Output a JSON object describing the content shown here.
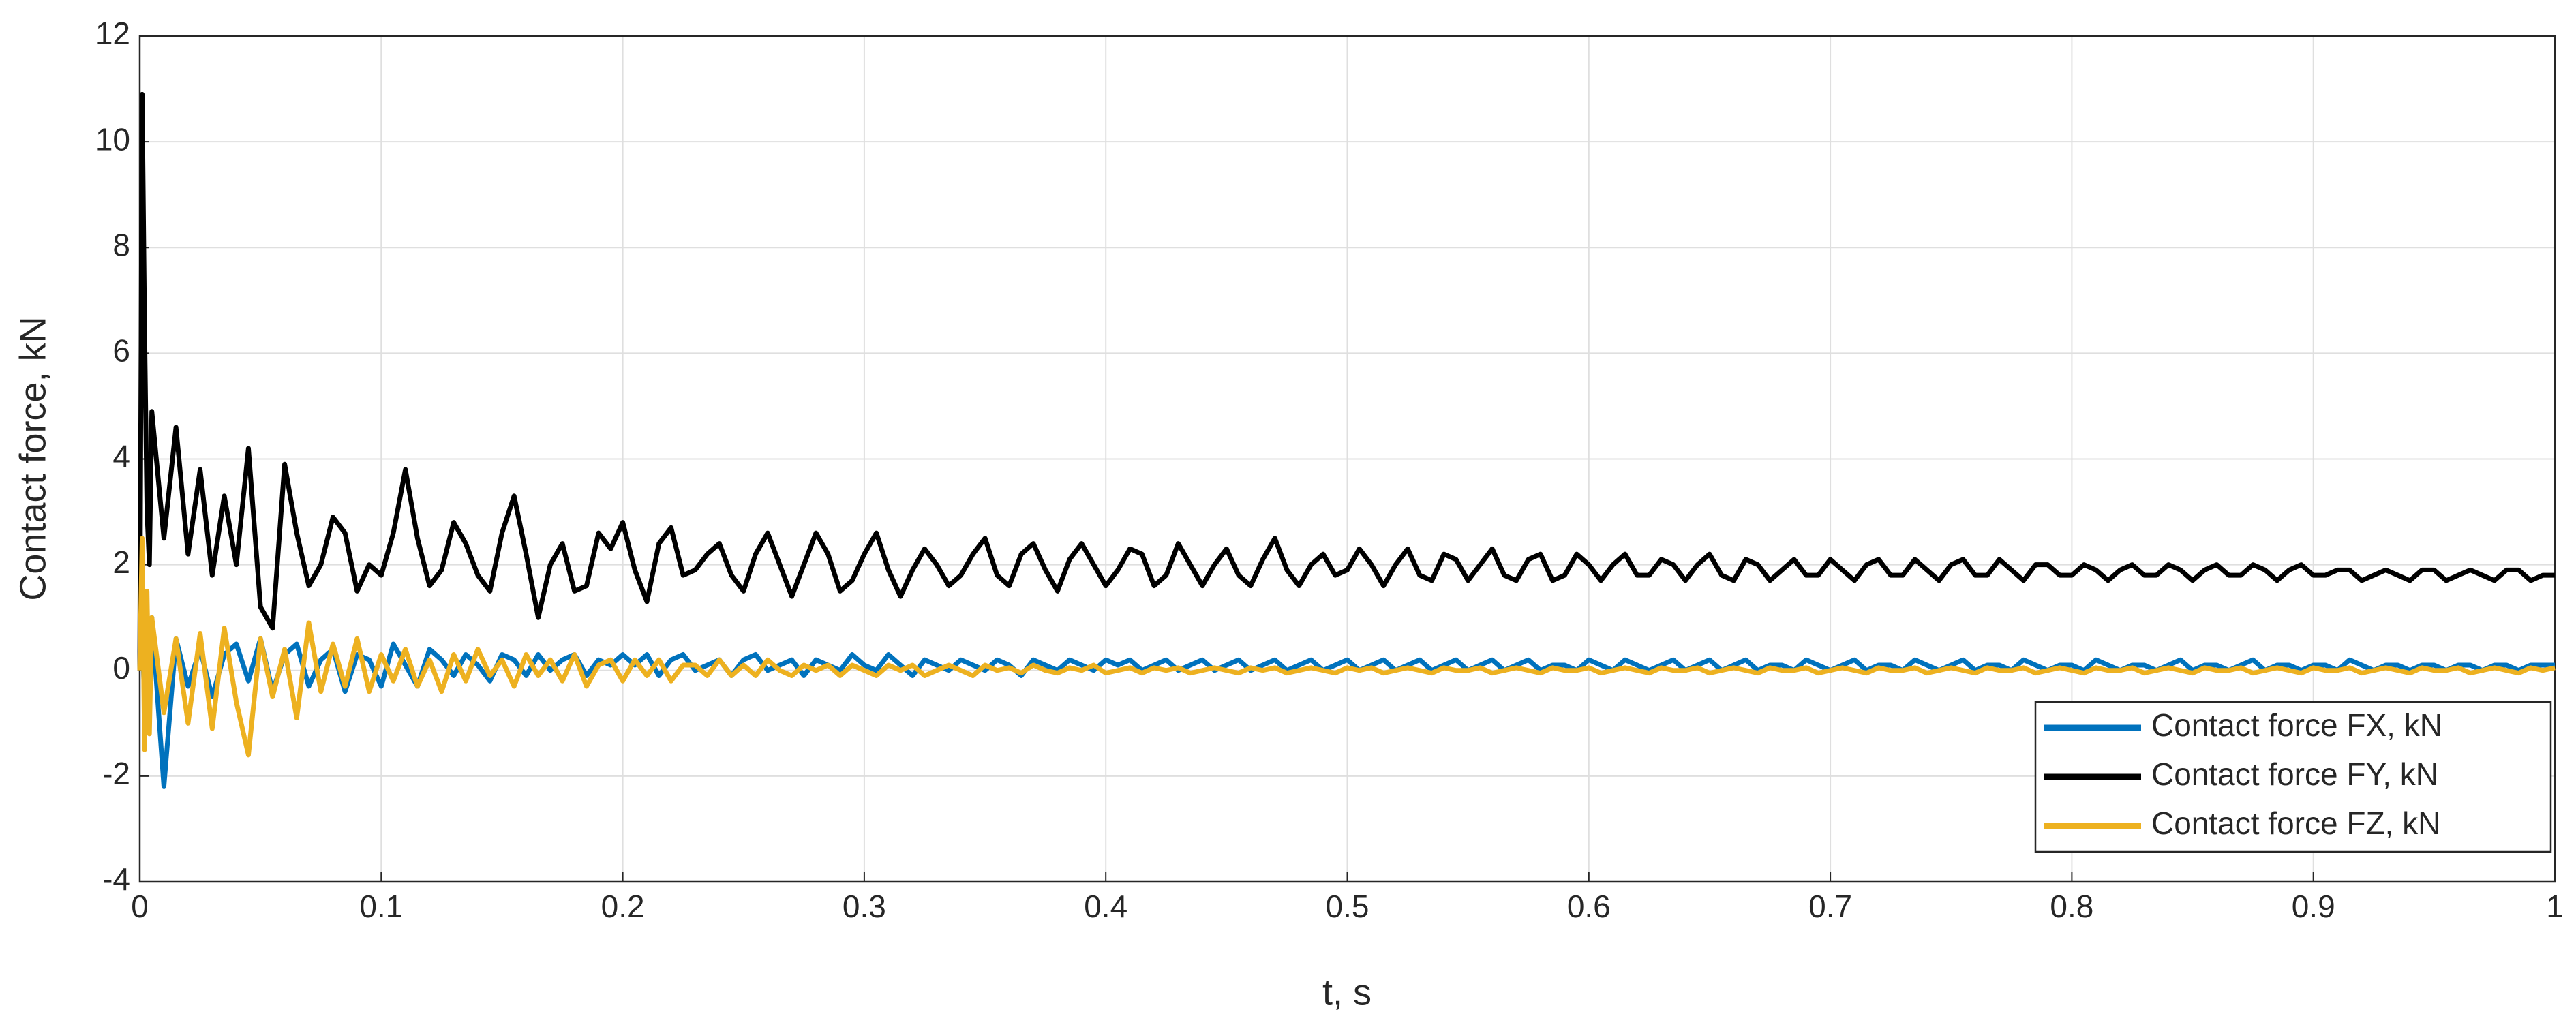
{
  "chart_data": {
    "type": "line",
    "xlabel": "t, s",
    "ylabel": "Contact force,  kN",
    "xlim": [
      0,
      1
    ],
    "ylim": [
      -4,
      12
    ],
    "xticks": [
      0,
      0.1,
      0.2,
      0.3,
      0.4,
      0.5,
      0.6,
      0.7,
      0.8,
      0.9,
      1
    ],
    "yticks": [
      -4,
      -2,
      0,
      2,
      4,
      6,
      8,
      10,
      12
    ],
    "grid": true,
    "legend": "lower right",
    "x": [
      0,
      0.001,
      0.002,
      0.003,
      0.004,
      0.005,
      0.01,
      0.015,
      0.02,
      0.025,
      0.03,
      0.035,
      0.04,
      0.045,
      0.05,
      0.055,
      0.06,
      0.065,
      0.07,
      0.075,
      0.08,
      0.085,
      0.09,
      0.095,
      0.1,
      0.105,
      0.11,
      0.115,
      0.12,
      0.125,
      0.13,
      0.135,
      0.14,
      0.145,
      0.15,
      0.155,
      0.16,
      0.165,
      0.17,
      0.175,
      0.18,
      0.185,
      0.19,
      0.195,
      0.2,
      0.205,
      0.21,
      0.215,
      0.22,
      0.225,
      0.23,
      0.235,
      0.24,
      0.245,
      0.25,
      0.255,
      0.26,
      0.265,
      0.27,
      0.275,
      0.28,
      0.285,
      0.29,
      0.295,
      0.3,
      0.305,
      0.31,
      0.315,
      0.32,
      0.325,
      0.33,
      0.335,
      0.34,
      0.345,
      0.35,
      0.355,
      0.36,
      0.365,
      0.37,
      0.375,
      0.38,
      0.385,
      0.39,
      0.395,
      0.4,
      0.405,
      0.41,
      0.415,
      0.42,
      0.425,
      0.43,
      0.435,
      0.44,
      0.445,
      0.45,
      0.455,
      0.46,
      0.465,
      0.47,
      0.475,
      0.48,
      0.485,
      0.49,
      0.495,
      0.5,
      0.505,
      0.51,
      0.515,
      0.52,
      0.525,
      0.53,
      0.535,
      0.54,
      0.545,
      0.55,
      0.555,
      0.56,
      0.565,
      0.57,
      0.575,
      0.58,
      0.585,
      0.59,
      0.595,
      0.6,
      0.605,
      0.61,
      0.615,
      0.62,
      0.625,
      0.63,
      0.635,
      0.64,
      0.645,
      0.65,
      0.655,
      0.66,
      0.665,
      0.67,
      0.675,
      0.68,
      0.685,
      0.69,
      0.695,
      0.7,
      0.705,
      0.71,
      0.715,
      0.72,
      0.725,
      0.73,
      0.735,
      0.74,
      0.745,
      0.75,
      0.755,
      0.76,
      0.765,
      0.77,
      0.775,
      0.78,
      0.785,
      0.79,
      0.795,
      0.8,
      0.805,
      0.81,
      0.815,
      0.82,
      0.825,
      0.83,
      0.835,
      0.84,
      0.845,
      0.85,
      0.855,
      0.86,
      0.865,
      0.87,
      0.875,
      0.88,
      0.885,
      0.89,
      0.895,
      0.9,
      0.905,
      0.91,
      0.915,
      0.92,
      0.925,
      0.93,
      0.935,
      0.94,
      0.945,
      0.95,
      0.955,
      0.96,
      0.965,
      0.97,
      0.975,
      0.98,
      0.985,
      0.99,
      0.995,
      1
    ],
    "series": [
      {
        "name": "Contact force FX, kN",
        "color": "#0072bd",
        "values": [
          0,
          0.8,
          -0.6,
          0.5,
          -0.3,
          1.0,
          -2.2,
          0.6,
          -0.3,
          0.4,
          -0.5,
          0.3,
          0.5,
          -0.2,
          0.6,
          -0.4,
          0.3,
          0.5,
          -0.3,
          0.2,
          0.4,
          -0.4,
          0.3,
          0.2,
          -0.3,
          0.5,
          0.1,
          -0.3,
          0.4,
          0.2,
          -0.1,
          0.3,
          0.1,
          -0.2,
          0.3,
          0.2,
          -0.1,
          0.3,
          0.0,
          0.2,
          0.3,
          -0.1,
          0.2,
          0.1,
          0.3,
          0.1,
          0.3,
          -0.1,
          0.2,
          0.3,
          0.0,
          0.1,
          0.2,
          -0.1,
          0.2,
          0.3,
          0.0,
          0.1,
          0.2,
          -0.1,
          0.2,
          0.1,
          0.0,
          0.3,
          0.1,
          0.0,
          0.3,
          0.1,
          -0.1,
          0.2,
          0.1,
          0.0,
          0.2,
          0.1,
          0.0,
          0.2,
          0.1,
          -0.1,
          0.2,
          0.1,
          0.0,
          0.2,
          0.1,
          0.0,
          0.2,
          0.1,
          0.2,
          0.0,
          0.1,
          0.2,
          0.0,
          0.1,
          0.2,
          0.0,
          0.1,
          0.2,
          0.0,
          0.1,
          0.2,
          0.0,
          0.1,
          0.2,
          0.0,
          0.1,
          0.2,
          0.0,
          0.1,
          0.2,
          0.0,
          0.1,
          0.2,
          0.0,
          0.1,
          0.2,
          0.0,
          0.1,
          0.2,
          0.0,
          0.1,
          0.2,
          0.0,
          0.1,
          0.1,
          0.0,
          0.2,
          0.1,
          0.0,
          0.2,
          0.1,
          0.0,
          0.1,
          0.2,
          0.0,
          0.1,
          0.2,
          0.0,
          0.1,
          0.2,
          0.0,
          0.1,
          0.1,
          0.0,
          0.2,
          0.1,
          0.0,
          0.1,
          0.2,
          0.0,
          0.1,
          0.1,
          0.0,
          0.2,
          0.1,
          0.0,
          0.1,
          0.2,
          0.0,
          0.1,
          0.1,
          0.0,
          0.2,
          0.1,
          0.0,
          0.1,
          0.1,
          0.0,
          0.2,
          0.1,
          0.0,
          0.1,
          0.1,
          0.0,
          0.1,
          0.2,
          0.0,
          0.1,
          0.1,
          0.0,
          0.1,
          0.2,
          0.0,
          0.1,
          0.1,
          0.0,
          0.1,
          0.1,
          0.0,
          0.2,
          0.1,
          0.0,
          0.1,
          0.1,
          0.0,
          0.1,
          0.1,
          0.0,
          0.1,
          0.1,
          0.0,
          0.1,
          0.1,
          0.0,
          0.1,
          0.1,
          0.1
        ]
      },
      {
        "name": "Contact force FY, kN",
        "color": "#000000",
        "values": [
          0,
          10.9,
          6.5,
          3.0,
          2.0,
          4.9,
          2.5,
          4.6,
          2.2,
          3.8,
          1.8,
          3.3,
          2.0,
          4.2,
          1.2,
          0.8,
          3.9,
          2.6,
          1.6,
          2.0,
          2.9,
          2.6,
          1.5,
          2.0,
          1.8,
          2.6,
          3.8,
          2.5,
          1.6,
          1.9,
          2.8,
          2.4,
          1.8,
          1.5,
          2.6,
          3.3,
          2.2,
          1.0,
          2.0,
          2.4,
          1.5,
          1.6,
          2.6,
          2.3,
          2.8,
          1.9,
          1.3,
          2.4,
          2.7,
          1.8,
          1.9,
          2.2,
          2.4,
          1.8,
          1.5,
          2.2,
          2.6,
          2.0,
          1.4,
          2.0,
          2.6,
          2.2,
          1.5,
          1.7,
          2.2,
          2.6,
          1.9,
          1.4,
          1.9,
          2.3,
          2.0,
          1.6,
          1.8,
          2.2,
          2.5,
          1.8,
          1.6,
          2.2,
          2.4,
          1.9,
          1.5,
          2.1,
          2.4,
          2.0,
          1.6,
          1.9,
          2.3,
          2.2,
          1.6,
          1.8,
          2.4,
          2.0,
          1.6,
          2.0,
          2.3,
          1.8,
          1.6,
          2.1,
          2.5,
          1.9,
          1.6,
          2.0,
          2.2,
          1.8,
          1.9,
          2.3,
          2.0,
          1.6,
          2.0,
          2.3,
          1.8,
          1.7,
          2.2,
          2.1,
          1.7,
          2.0,
          2.3,
          1.8,
          1.7,
          2.1,
          2.2,
          1.7,
          1.8,
          2.2,
          2.0,
          1.7,
          2.0,
          2.2,
          1.8,
          1.8,
          2.1,
          2.0,
          1.7,
          2.0,
          2.2,
          1.8,
          1.7,
          2.1,
          2.0,
          1.7,
          1.9,
          2.1,
          1.8,
          1.8,
          2.1,
          1.9,
          1.7,
          2.0,
          2.1,
          1.8,
          1.8,
          2.1,
          1.9,
          1.7,
          2.0,
          2.1,
          1.8,
          1.8,
          2.1,
          1.9,
          1.7,
          2.0,
          2.0,
          1.8,
          1.8,
          2.0,
          1.9,
          1.7,
          1.9,
          2.0,
          1.8,
          1.8,
          2.0,
          1.9,
          1.7,
          1.9,
          2.0,
          1.8,
          1.8,
          2.0,
          1.9,
          1.7,
          1.9,
          2.0,
          1.8,
          1.8,
          1.9,
          1.9,
          1.7,
          1.8,
          1.9,
          1.8,
          1.7,
          1.9,
          1.9,
          1.7,
          1.8,
          1.9,
          1.8,
          1.7,
          1.9,
          1.9,
          1.7,
          1.8,
          1.8
        ]
      },
      {
        "name": "Contact force FZ, kN",
        "color": "#edb120",
        "values": [
          0,
          2.5,
          -1.5,
          1.5,
          -1.2,
          1.0,
          -0.8,
          0.6,
          -1.0,
          0.7,
          -1.1,
          0.8,
          -0.6,
          -1.6,
          0.6,
          -0.5,
          0.4,
          -0.9,
          0.9,
          -0.4,
          0.5,
          -0.3,
          0.6,
          -0.4,
          0.3,
          -0.2,
          0.4,
          -0.3,
          0.2,
          -0.4,
          0.3,
          -0.2,
          0.4,
          -0.1,
          0.2,
          -0.3,
          0.3,
          -0.1,
          0.2,
          -0.2,
          0.3,
          -0.3,
          0.1,
          0.2,
          -0.2,
          0.2,
          -0.1,
          0.2,
          -0.2,
          0.1,
          0.1,
          -0.1,
          0.2,
          -0.1,
          0.1,
          -0.1,
          0.2,
          0.0,
          -0.1,
          0.1,
          0.0,
          0.1,
          -0.1,
          0.1,
          0.0,
          -0.1,
          0.1,
          0.0,
          0.1,
          -0.1,
          0.0,
          0.1,
          0.0,
          -0.1,
          0.1,
          0.0,
          0.05,
          -0.05,
          0.1,
          0.0,
          -0.05,
          0.05,
          0.0,
          0.1,
          -0.05,
          0.0,
          0.05,
          -0.05,
          0.05,
          0.0,
          0.05,
          -0.05,
          0.0,
          0.05,
          0.0,
          -0.05,
          0.05,
          0.0,
          0.05,
          -0.05,
          0.0,
          0.05,
          0.0,
          -0.05,
          0.05,
          0.0,
          0.05,
          -0.05,
          0.0,
          0.05,
          0.0,
          -0.05,
          0.05,
          0.0,
          0.0,
          0.05,
          -0.05,
          0.0,
          0.05,
          0.0,
          -0.05,
          0.05,
          0.0,
          0.0,
          0.05,
          -0.05,
          0.0,
          0.05,
          0.0,
          -0.05,
          0.05,
          0.0,
          0.0,
          0.05,
          -0.05,
          0.0,
          0.05,
          0.0,
          -0.05,
          0.05,
          0.0,
          0.0,
          0.05,
          -0.05,
          0.0,
          0.05,
          0.0,
          -0.05,
          0.05,
          0.0,
          0.0,
          0.05,
          -0.05,
          0.0,
          0.05,
          0.0,
          -0.05,
          0.05,
          0.0,
          0.0,
          0.05,
          -0.05,
          0.0,
          0.05,
          0.0,
          -0.05,
          0.05,
          0.0,
          0.0,
          0.05,
          -0.05,
          0.0,
          0.05,
          0.0,
          -0.05,
          0.05,
          0.0,
          0.0,
          0.05,
          -0.05,
          0.0,
          0.05,
          0.0,
          -0.05,
          0.05,
          0.0,
          0.0,
          0.05,
          -0.05,
          0.0,
          0.05,
          0.0,
          -0.05,
          0.05,
          0.0,
          0.0,
          0.05,
          -0.05,
          0.0,
          0.05,
          0.0,
          -0.05,
          0.05,
          0.0,
          0.05
        ]
      }
    ]
  }
}
